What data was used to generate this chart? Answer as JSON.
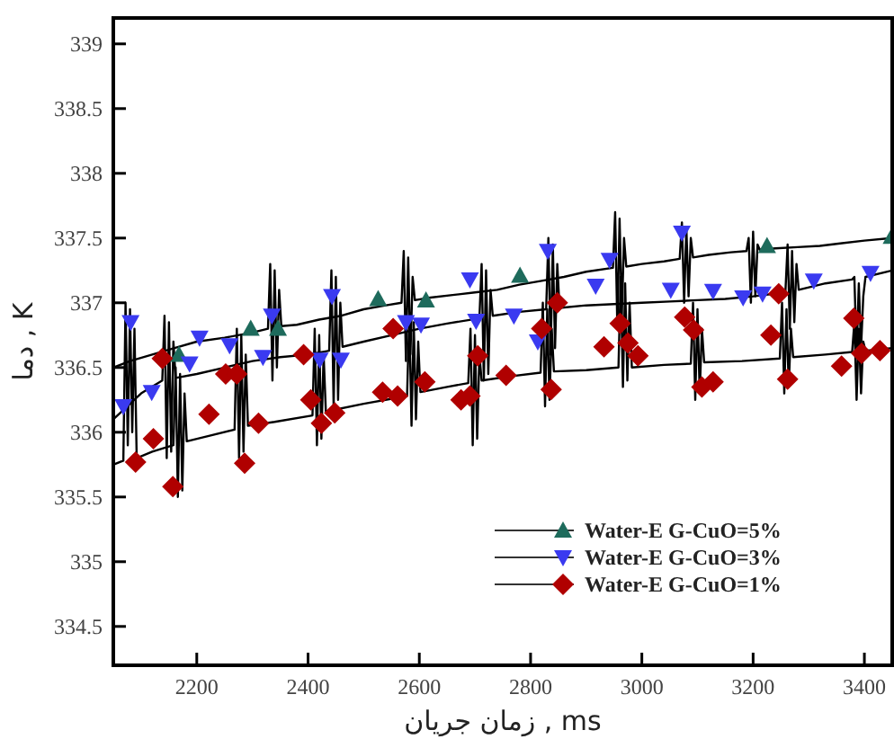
{
  "chart_data": {
    "type": "line",
    "xlabel": "زمان جریان , ms",
    "ylabel": "دما , K",
    "xlim": [
      2050,
      3450
    ],
    "ylim": [
      334.2,
      339.2
    ],
    "xticks": [
      2200,
      2400,
      2600,
      2800,
      3000,
      3200,
      3400
    ],
    "yticks": [
      334.5,
      335,
      335.5,
      336,
      336.5,
      337,
      337.5,
      338,
      338.5,
      339
    ],
    "legend": "bottom right",
    "series": [
      {
        "color": "#000000",
        "marker": "none",
        "x": [
          2050,
          2080,
          2120,
          2160,
          2200,
          2250,
          2300,
          2328,
          2332,
          2336,
          2340,
          2344,
          2348,
          2352,
          2380,
          2420,
          2460,
          2500,
          2540,
          2568,
          2572,
          2576,
          2580,
          2584,
          2588,
          2592,
          2620,
          2660,
          2700,
          2740,
          2780,
          2820,
          2860,
          2900,
          2948,
          2952,
          2956,
          2960,
          2964,
          2968,
          2972,
          3000,
          3040,
          3068,
          3072,
          3076,
          3080,
          3084,
          3088,
          3092,
          3120,
          3160,
          3188,
          3192,
          3196,
          3200,
          3204,
          3208,
          3212,
          3240,
          3280,
          3320,
          3360,
          3400,
          3450
        ],
        "values": [
          336.5,
          336.55,
          336.6,
          336.65,
          336.7,
          336.73,
          336.77,
          336.8,
          337.3,
          336.4,
          337.25,
          336.5,
          337.1,
          336.82,
          336.83,
          336.87,
          336.9,
          336.95,
          336.98,
          337.0,
          337.4,
          336.55,
          337.35,
          336.6,
          337.2,
          337.02,
          337.04,
          337.06,
          337.08,
          337.1,
          337.14,
          337.17,
          337.2,
          337.24,
          337.27,
          337.7,
          336.8,
          337.65,
          336.9,
          337.5,
          337.28,
          337.3,
          337.32,
          337.34,
          337.62,
          337.0,
          337.58,
          337.05,
          337.5,
          337.35,
          337.37,
          337.39,
          337.4,
          337.5,
          337.0,
          337.55,
          337.05,
          337.45,
          337.41,
          337.42,
          337.43,
          337.44,
          337.46,
          337.48,
          337.5
        ]
      },
      {
        "color": "#000000",
        "marker": "none",
        "x": [
          2050,
          2100,
          2138,
          2142,
          2146,
          2150,
          2154,
          2158,
          2162,
          2200,
          2250,
          2300,
          2350,
          2400,
          2438,
          2442,
          2446,
          2450,
          2454,
          2458,
          2462,
          2500,
          2550,
          2600,
          2650,
          2708,
          2712,
          2716,
          2720,
          2724,
          2728,
          2732,
          2780,
          2828,
          2832,
          2836,
          2840,
          2844,
          2848,
          2852,
          2900,
          2950,
          3000,
          3050,
          3100,
          3150,
          3200,
          3258,
          3262,
          3266,
          3270,
          3274,
          3278,
          3282,
          3330,
          3378,
          3382,
          3386,
          3390,
          3394,
          3398,
          3402,
          3450
        ],
        "values": [
          336.1,
          336.3,
          336.4,
          336.9,
          335.8,
          336.85,
          335.85,
          336.7,
          336.42,
          336.45,
          336.5,
          336.55,
          336.58,
          336.6,
          336.63,
          337.25,
          336.2,
          337.2,
          336.25,
          337.0,
          336.66,
          336.7,
          336.75,
          336.8,
          336.84,
          336.88,
          337.3,
          336.4,
          337.25,
          336.45,
          337.1,
          336.9,
          336.93,
          336.95,
          337.5,
          336.6,
          337.45,
          336.65,
          337.3,
          336.96,
          336.98,
          336.99,
          337.0,
          337.01,
          337.02,
          337.03,
          337.05,
          337.08,
          337.45,
          336.8,
          337.4,
          336.85,
          337.3,
          337.1,
          337.15,
          337.18,
          337.2,
          336.6,
          337.15,
          336.65,
          337.05,
          337.2,
          337.25
        ]
      },
      {
        "color": "#000000",
        "marker": "none",
        "x": [
          2050,
          2068,
          2072,
          2076,
          2080,
          2084,
          2088,
          2092,
          2120,
          2158,
          2162,
          2166,
          2170,
          2174,
          2178,
          2182,
          2220,
          2268,
          2272,
          2276,
          2280,
          2284,
          2288,
          2292,
          2340,
          2408,
          2412,
          2416,
          2420,
          2424,
          2428,
          2432,
          2500,
          2578,
          2582,
          2586,
          2590,
          2594,
          2598,
          2602,
          2650,
          2688,
          2692,
          2696,
          2700,
          2704,
          2708,
          2712,
          2760,
          2818,
          2822,
          2826,
          2830,
          2834,
          2838,
          2842,
          2900,
          2958,
          2962,
          2966,
          2970,
          2974,
          2978,
          2982,
          3040,
          3088,
          3092,
          3096,
          3100,
          3104,
          3108,
          3112,
          3180,
          3248,
          3252,
          3256,
          3260,
          3264,
          3268,
          3272,
          3330,
          3378,
          3382,
          3386,
          3390,
          3394,
          3398,
          3402,
          3450
        ],
        "values": [
          335.75,
          335.78,
          337.0,
          335.9,
          336.95,
          336.0,
          336.8,
          335.8,
          335.85,
          335.9,
          336.5,
          335.5,
          336.45,
          335.55,
          336.3,
          335.93,
          335.97,
          336.02,
          336.8,
          335.8,
          336.75,
          335.85,
          336.6,
          336.05,
          336.08,
          336.13,
          336.8,
          335.9,
          336.75,
          335.95,
          336.6,
          336.16,
          336.22,
          336.28,
          336.9,
          336.05,
          336.85,
          336.1,
          336.7,
          336.31,
          336.35,
          336.38,
          336.8,
          335.9,
          336.75,
          335.95,
          336.6,
          336.4,
          336.43,
          336.46,
          337.0,
          336.2,
          336.95,
          336.25,
          336.8,
          336.47,
          336.48,
          336.5,
          337.2,
          336.35,
          337.15,
          336.4,
          337.0,
          336.5,
          336.52,
          336.53,
          337.0,
          336.25,
          336.95,
          336.3,
          336.8,
          336.54,
          336.55,
          336.57,
          337.0,
          336.3,
          336.95,
          336.35,
          336.8,
          336.58,
          336.6,
          336.62,
          336.85,
          336.25,
          336.8,
          336.3,
          336.7,
          336.63,
          336.65
        ]
      },
      {
        "type": "scatter",
        "name": "Water-E G-CuO=5%",
        "color": "#1e6b5c",
        "marker": "triangle",
        "x": [
          2168,
          2297,
          2346,
          2526,
          2612,
          2781,
          3225,
          3449
        ],
        "values": [
          336.6,
          336.8,
          336.8,
          337.03,
          337.02,
          337.21,
          337.44,
          337.51
        ]
      },
      {
        "type": "scatter",
        "name": "Water-E G-CuO=3%",
        "color": "#3a3af0",
        "marker": "triangle-down",
        "x": [
          2068,
          2081,
          2119,
          2187,
          2205,
          2259,
          2319,
          2335,
          2421,
          2443,
          2459,
          2576,
          2603,
          2691,
          2702,
          2770,
          2813,
          2831,
          2917,
          2942,
          3052,
          3072,
          3128,
          3182,
          3217,
          3309,
          3411
        ],
        "values": [
          336.2,
          336.85,
          336.31,
          336.53,
          336.73,
          336.67,
          336.58,
          336.9,
          336.56,
          337.05,
          336.56,
          336.85,
          336.83,
          337.18,
          336.86,
          336.9,
          336.7,
          337.4,
          337.13,
          337.33,
          337.1,
          337.54,
          337.09,
          337.04,
          337.07,
          337.17,
          337.23
        ]
      },
      {
        "type": "scatter",
        "name": "Water-E G-CuO=1%",
        "color": "#b00000",
        "marker": "diamond",
        "x": [
          2090,
          2122,
          2138,
          2157,
          2222,
          2252,
          2272,
          2286,
          2311,
          2392,
          2405,
          2424,
          2448,
          2534,
          2561,
          2553,
          2610,
          2675,
          2691,
          2705,
          2756,
          2820,
          2837,
          2848,
          2932,
          2961,
          2975,
          2993,
          3077,
          3093,
          3108,
          3128,
          3232,
          3246,
          3262,
          3359,
          3381,
          3395,
          3428
        ],
        "values": [
          335.77,
          335.95,
          336.57,
          335.58,
          336.14,
          336.45,
          336.45,
          335.76,
          336.07,
          336.6,
          336.25,
          336.07,
          336.15,
          336.31,
          336.28,
          336.8,
          336.39,
          336.25,
          336.28,
          336.59,
          336.44,
          336.8,
          336.33,
          337.0,
          336.66,
          336.84,
          336.69,
          336.59,
          336.89,
          336.79,
          336.35,
          336.39,
          336.75,
          337.07,
          336.41,
          336.51,
          336.88,
          336.61,
          336.63
        ]
      }
    ]
  }
}
